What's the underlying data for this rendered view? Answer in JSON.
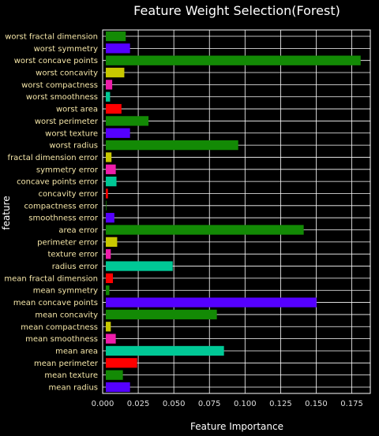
{
  "chart_data": {
    "type": "bar",
    "orientation": "horizontal",
    "title": "Feature Weight Selection(Forest)",
    "xlabel": "Feature Importance",
    "ylabel": "feature",
    "xlim": [
      0,
      0.188
    ],
    "xticks": [
      "0.000",
      "0.025",
      "0.050",
      "0.075",
      "0.100",
      "0.125",
      "0.150",
      "0.175"
    ],
    "grid": true,
    "categories": [
      "mean radius",
      "mean texture",
      "mean perimeter",
      "mean area",
      "mean smoothness",
      "mean compactness",
      "mean concavity",
      "mean concave points",
      "mean symmetry",
      "mean fractal dimension",
      "radius error",
      "texture error",
      "perimeter error",
      "area error",
      "smoothness error",
      "compactness error",
      "concavity error",
      "concave points error",
      "symmetry error",
      "fractal dimension error",
      "worst radius",
      "worst texture",
      "worst perimeter",
      "worst area",
      "worst smoothness",
      "worst compactness",
      "worst concavity",
      "worst concave points",
      "worst symmetry",
      "worst fractal dimension"
    ],
    "values": [
      0.017,
      0.012,
      0.022,
      0.083,
      0.007,
      0.0035,
      0.078,
      0.148,
      0.0025,
      0.005,
      0.047,
      0.0035,
      0.008,
      0.139,
      0.006,
      0.0004,
      0.0015,
      0.0075,
      0.007,
      0.004,
      0.093,
      0.017,
      0.03,
      0.011,
      0.003,
      0.0045,
      0.013,
      0.179,
      0.017,
      0.014
    ],
    "colors": [
      "#5500ff",
      "#138a05",
      "#ff0000",
      "#00c896",
      "#ee1daa",
      "#c8c800",
      "#138a05",
      "#5500ff",
      "#138a05",
      "#ff0000",
      "#00c896",
      "#ee1daa",
      "#c8c800",
      "#138a05",
      "#5500ff",
      "#138a05",
      "#ff0000",
      "#00c896",
      "#ee1daa",
      "#c8c800",
      "#138a05",
      "#5500ff",
      "#138a05",
      "#ff0000",
      "#00c896",
      "#ee1daa",
      "#c8c800",
      "#138a05",
      "#5500ff",
      "#138a05"
    ]
  }
}
